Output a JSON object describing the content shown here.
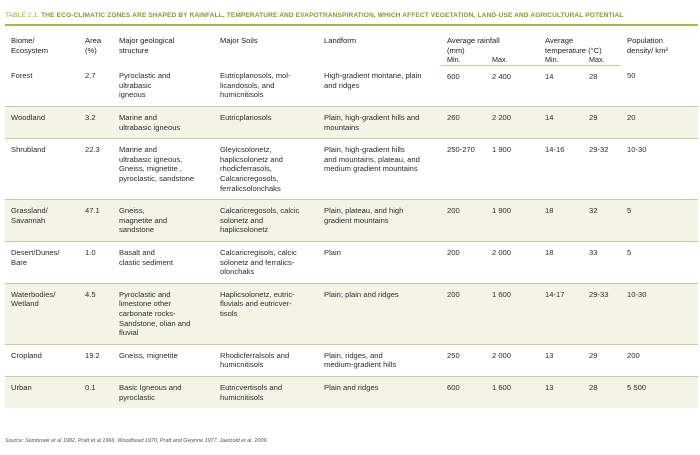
{
  "caption": {
    "label": "Table 2.1:",
    "title": "The eco-climatic zones are shaped by rainfall, temperature and evapotranspiration, which affect vegetation, land-use and agricultural potential"
  },
  "headers": {
    "biome": [
      "Biome/",
      "Ecosystem"
    ],
    "area": [
      "Area",
      "(%)"
    ],
    "geology": [
      "Major geological",
      "structure"
    ],
    "soils": "Major Soils",
    "landform": "Landform",
    "rainfall": [
      "Average rainfall",
      "(mm)"
    ],
    "temperature": [
      "Average",
      "temperature (°C)"
    ],
    "population": [
      "Population",
      "density/ km²"
    ],
    "min": "Min.",
    "max": "Max."
  },
  "rows": [
    {
      "biome": [
        "Forest"
      ],
      "area": "2.7",
      "geology": [
        "Pyroclastic and",
        "ultrabasic",
        "igneous"
      ],
      "soils": [
        "Eutricplanosols, mol-",
        "licandosols, and",
        "humicnitisols"
      ],
      "landform": [
        "High-gradient montane, plain",
        "and ridges"
      ],
      "rain_min": "600",
      "rain_max": "2 400",
      "temp_min": "14",
      "temp_max": "28",
      "pop": "50"
    },
    {
      "biome": [
        "Woodland"
      ],
      "area": "3.2",
      "geology": [
        "Marine and",
        "ultrabasic igneous"
      ],
      "soils": [
        "Eutricplanosols"
      ],
      "landform": [
        "Plain, high-gradient hills and",
        "mountains"
      ],
      "rain_min": "260",
      "rain_max": "2 200",
      "temp_min": "14",
      "temp_max": "29",
      "pop": "20"
    },
    {
      "biome": [
        "Shrubland"
      ],
      "area": "22.3",
      "geology": [
        "Marine and",
        "ultrabasic igneous,",
        "Gneiss, mignetite ,",
        "pyroclastic, sandstone"
      ],
      "soils": [
        "Gleyicsolonetz,",
        "haplicsolonetz and",
        "rhodicferrasols,",
        "Calcaricregosols,",
        "ferralicsolonchaks"
      ],
      "landform": [
        "Plain, high-gradient hills",
        "and mountains, plateau, and",
        "medium gradient mountains"
      ],
      "rain_min": "250-270",
      "rain_max": "1 900",
      "temp_min": "14-16",
      "temp_max": "29-32",
      "pop": "10-30"
    },
    {
      "biome": [
        "Grassland/",
        "Savannah"
      ],
      "area": "47.1",
      "geology": [
        "Gneiss,",
        "magnetite and",
        "sandstone"
      ],
      "soils": [
        "Calcaricregosols, calcic",
        "solonetz and",
        "haplicsolonetz"
      ],
      "landform": [
        "Plain, plateau, and high",
        "gradient mountains"
      ],
      "rain_min": "200",
      "rain_max": "1 900",
      "temp_min": "18",
      "temp_max": "32",
      "pop": "5"
    },
    {
      "biome": [
        "Desert/Dunes/",
        "Bare"
      ],
      "area": "1.0",
      "geology": [
        "Basalt and",
        "clastic sediment"
      ],
      "soils": [
        "Calcaricregisols, calcic",
        "solonetz and ferralics-",
        "olonchaks"
      ],
      "landform": [
        "Plain"
      ],
      "rain_min": "200",
      "rain_max": "2 000",
      "temp_min": "18",
      "temp_max": "33",
      "pop": "5"
    },
    {
      "biome": [
        "Waterbodies/",
        "Wetland"
      ],
      "area": "4.5",
      "geology": [
        "Pyroclastic and",
        "limestone other",
        "carbonate rocks-",
        "Sandstone, olian and",
        "fluvial"
      ],
      "soils": [
        "Haplicsolonetz, eutric-",
        "fluvials and eutricver-",
        "tisols"
      ],
      "landform": [
        "Plain; plain and ridges"
      ],
      "rain_min": "200",
      "rain_max": "1 600",
      "temp_min": "14-17",
      "temp_max": "29-33",
      "pop": "10-30"
    },
    {
      "biome": [
        "Cropland"
      ],
      "area": "19.2",
      "geology": [
        "Gneiss, mignetite"
      ],
      "soils": [
        "Rhodicferralsols and",
        "humicnitisols"
      ],
      "landform": [
        "Plain, ridges, and",
        "medium-gradient hills"
      ],
      "rain_min": "250",
      "rain_max": "2 000",
      "temp_min": "13",
      "temp_max": "29",
      "pop": "200"
    },
    {
      "biome": [
        "Urban"
      ],
      "area": "0.1",
      "geology": [
        "Basic Igneous and",
        "pyroclastic"
      ],
      "soils": [
        "Eutricvertisols and",
        "humicnitisols"
      ],
      "landform": [
        "Plain and ridges"
      ],
      "rain_min": "600",
      "rain_max": "1 600",
      "temp_min": "13",
      "temp_max": "28",
      "pop": "5 500"
    }
  ],
  "source": "Source: Sombroek et al 1982, Pratt et al 1966, Woodhead 1970, Pratt and Gwynne 1977, Jaetzold et al. 2009."
}
